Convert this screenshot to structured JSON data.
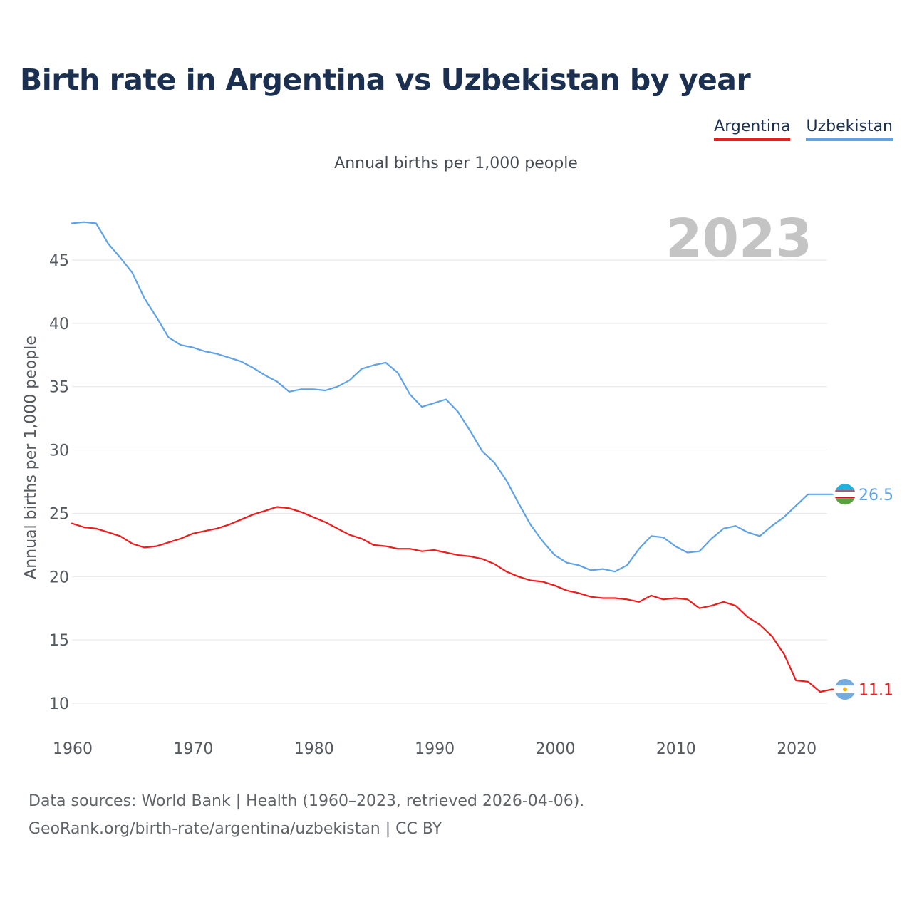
{
  "title": "Birth rate in Argentina vs Uzbekistan by year",
  "subtitle": "Annual births per 1,000 people",
  "legend": [
    {
      "label": "Argentina",
      "color": "#ee1c1c"
    },
    {
      "label": "Uzbekistan",
      "color": "#5fa2e6"
    }
  ],
  "footer": {
    "line1": "Data sources: World Bank | Health (1960–2023, retrieved 2026-04-06).",
    "line2": "GeoRank.org/birth-rate/argentina/uzbekistan | CC BY"
  },
  "chart_data": {
    "type": "line",
    "title": "Birth rate in Argentina vs Uzbekistan by year",
    "xlabel": "",
    "ylabel": "Annual births per 1,000 people",
    "year_label": "2023",
    "xlim": [
      1960,
      2023
    ],
    "ylim": [
      8,
      48
    ],
    "x_ticks": [
      1960,
      1970,
      1980,
      1990,
      2000,
      2010,
      2020
    ],
    "y_ticks": [
      10,
      15,
      20,
      25,
      30,
      35,
      40,
      45
    ],
    "grid": true,
    "legend_position": "top-right",
    "x": [
      1960,
      1961,
      1962,
      1963,
      1964,
      1965,
      1966,
      1967,
      1968,
      1969,
      1970,
      1971,
      1972,
      1973,
      1974,
      1975,
      1976,
      1977,
      1978,
      1979,
      1980,
      1981,
      1982,
      1983,
      1984,
      1985,
      1986,
      1987,
      1988,
      1989,
      1990,
      1991,
      1992,
      1993,
      1994,
      1995,
      1996,
      1997,
      1998,
      1999,
      2000,
      2001,
      2002,
      2003,
      2004,
      2005,
      2006,
      2007,
      2008,
      2009,
      2010,
      2011,
      2012,
      2013,
      2014,
      2015,
      2016,
      2017,
      2018,
      2019,
      2020,
      2021,
      2022,
      2023
    ],
    "series": [
      {
        "name": "Argentina",
        "color": "#ee1c1c",
        "end_label": "11.1",
        "values": [
          24.2,
          23.9,
          23.8,
          23.5,
          23.2,
          22.6,
          22.3,
          22.4,
          22.7,
          23.0,
          23.4,
          23.6,
          23.8,
          24.1,
          24.5,
          24.9,
          25.2,
          25.5,
          25.4,
          25.1,
          24.7,
          24.3,
          23.8,
          23.3,
          23.0,
          22.5,
          22.4,
          22.2,
          22.2,
          22.0,
          22.1,
          21.9,
          21.7,
          21.6,
          21.4,
          21.0,
          20.4,
          20.0,
          19.7,
          19.6,
          19.3,
          18.9,
          18.7,
          18.4,
          18.3,
          18.3,
          18.2,
          18.0,
          18.5,
          18.2,
          18.3,
          18.2,
          17.5,
          17.7,
          18.0,
          17.7,
          16.8,
          16.2,
          15.3,
          13.9,
          11.8,
          11.7,
          10.9,
          11.1
        ]
      },
      {
        "name": "Uzbekistan",
        "color": "#5fa2e6",
        "end_label": "26.5",
        "values": [
          47.9,
          48.0,
          47.9,
          46.3,
          45.2,
          44.0,
          42.0,
          40.5,
          38.9,
          38.3,
          38.1,
          37.8,
          37.6,
          37.3,
          37.0,
          36.5,
          35.9,
          35.4,
          34.6,
          34.8,
          34.8,
          34.7,
          35.0,
          35.5,
          36.4,
          36.7,
          36.9,
          36.1,
          34.4,
          33.4,
          33.7,
          34.0,
          33.0,
          31.5,
          29.9,
          29.0,
          27.6,
          25.8,
          24.1,
          22.8,
          21.7,
          21.1,
          20.9,
          20.5,
          20.6,
          20.4,
          20.9,
          22.2,
          23.2,
          23.1,
          22.4,
          21.9,
          22.0,
          23.0,
          23.8,
          24.0,
          23.5,
          23.2,
          24.0,
          24.7,
          25.6,
          26.5,
          26.5,
          26.5
        ]
      }
    ]
  }
}
